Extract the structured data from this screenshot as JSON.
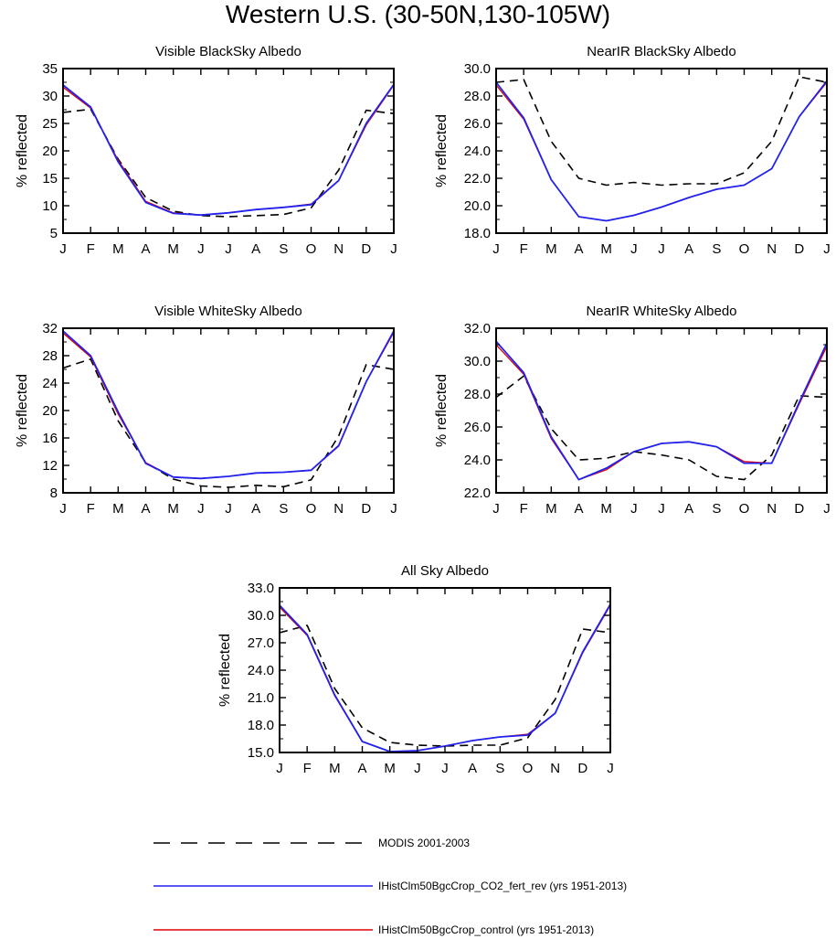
{
  "title": "Western U.S. (30-50N,130-105W)",
  "months": [
    "J",
    "F",
    "M",
    "A",
    "M",
    "J",
    "J",
    "A",
    "S",
    "O",
    "N",
    "D",
    "J"
  ],
  "colors": {
    "modis": "#000000",
    "co2_fert_rev": "#2222ee",
    "control": "#dd0000"
  },
  "legend": [
    {
      "key": "modis",
      "label": "MODIS 2001-2003",
      "style": "dashed"
    },
    {
      "key": "co2_fert_rev",
      "label": "IHistClm50BgcCrop_CO2_fert_rev (yrs 1951-2013)",
      "style": "solid"
    },
    {
      "key": "control",
      "label": "IHistClm50BgcCrop_control (yrs 1951-2013)",
      "style": "solid"
    }
  ],
  "chart_data": [
    {
      "type": "line",
      "title": "Visible BlackSky Albedo",
      "ylabel": "% reflected",
      "ylim": [
        5,
        35
      ],
      "yticks": [
        5,
        10,
        15,
        20,
        25,
        30,
        35
      ],
      "ytick_labels": [
        "5",
        "10",
        "15",
        "20",
        "25",
        "30",
        "35"
      ],
      "series": [
        {
          "key": "modis",
          "values": [
            27.0,
            27.6,
            18.5,
            11.5,
            9.0,
            8.2,
            8.0,
            8.2,
            8.4,
            9.6,
            16.5,
            27.4,
            26.8
          ]
        },
        {
          "key": "control",
          "values": [
            31.6,
            27.8,
            18.3,
            10.8,
            8.7,
            8.3,
            8.7,
            9.3,
            9.7,
            10.3,
            14.6,
            24.7,
            32.0
          ]
        },
        {
          "key": "co2_fert_rev",
          "values": [
            32.0,
            28.0,
            18.0,
            10.6,
            8.6,
            8.3,
            8.7,
            9.3,
            9.7,
            10.2,
            14.6,
            25.0,
            32.1
          ]
        }
      ]
    },
    {
      "type": "line",
      "title": "NearIR BlackSky Albedo",
      "ylabel": "% reflected",
      "ylim": [
        18,
        30
      ],
      "yticks": [
        18,
        20,
        22,
        24,
        26,
        28,
        30
      ],
      "ytick_labels": [
        "18.0",
        "20.0",
        "22.0",
        "24.0",
        "26.0",
        "28.0",
        "30.0"
      ],
      "series": [
        {
          "key": "modis",
          "values": [
            29.0,
            29.2,
            24.7,
            22.0,
            21.5,
            21.7,
            21.5,
            21.6,
            21.6,
            22.4,
            24.7,
            29.4,
            29.0
          ]
        },
        {
          "key": "control",
          "values": [
            28.8,
            26.3,
            21.9,
            19.2,
            18.9,
            19.3,
            19.9,
            20.6,
            21.2,
            21.5,
            22.7,
            26.5,
            29.0
          ]
        },
        {
          "key": "co2_fert_rev",
          "values": [
            29.0,
            26.4,
            21.9,
            19.2,
            18.9,
            19.3,
            19.9,
            20.6,
            21.2,
            21.5,
            22.7,
            26.5,
            29.1
          ]
        }
      ]
    },
    {
      "type": "line",
      "title": "Visible WhiteSky Albedo",
      "ylabel": "% reflected",
      "ylim": [
        8,
        32
      ],
      "yticks": [
        8,
        12,
        16,
        20,
        24,
        28,
        32
      ],
      "ytick_labels": [
        "8",
        "12",
        "16",
        "20",
        "24",
        "28",
        "32"
      ],
      "series": [
        {
          "key": "modis",
          "values": [
            26.2,
            27.5,
            18.5,
            12.4,
            10.0,
            9.0,
            8.8,
            9.1,
            8.9,
            9.9,
            16.3,
            26.7,
            26.0
          ]
        },
        {
          "key": "control",
          "values": [
            31.3,
            27.8,
            19.5,
            12.4,
            10.3,
            10.1,
            10.4,
            10.9,
            11.0,
            11.3,
            14.8,
            24.2,
            31.4
          ]
        },
        {
          "key": "co2_fert_rev",
          "values": [
            31.6,
            28.0,
            19.8,
            12.3,
            10.3,
            10.1,
            10.4,
            10.9,
            11.0,
            11.3,
            14.9,
            24.2,
            31.6
          ]
        }
      ]
    },
    {
      "type": "line",
      "title": "NearIR WhiteSky Albedo",
      "ylabel": "% reflected",
      "ylim": [
        22,
        32
      ],
      "yticks": [
        22,
        24,
        26,
        28,
        30,
        32
      ],
      "ytick_labels": [
        "22.0",
        "24.0",
        "26.0",
        "28.0",
        "30.0",
        "32.0"
      ],
      "series": [
        {
          "key": "modis",
          "values": [
            27.8,
            29.1,
            25.9,
            24.0,
            24.1,
            24.5,
            24.3,
            24.0,
            23.0,
            22.8,
            24.3,
            27.9,
            27.8
          ]
        },
        {
          "key": "control",
          "values": [
            31.0,
            29.2,
            25.3,
            22.8,
            23.4,
            24.5,
            25.0,
            25.1,
            24.8,
            23.9,
            23.8,
            27.4,
            30.9
          ]
        },
        {
          "key": "co2_fert_rev",
          "values": [
            31.2,
            29.3,
            25.4,
            22.8,
            23.5,
            24.5,
            25.0,
            25.1,
            24.8,
            23.8,
            23.8,
            27.5,
            31.1
          ]
        }
      ]
    },
    {
      "type": "line",
      "title": "All Sky Albedo",
      "ylabel": "% reflected",
      "ylim": [
        15,
        33
      ],
      "yticks": [
        15,
        18,
        21,
        24,
        27,
        30,
        33
      ],
      "ytick_labels": [
        "15.0",
        "18.0",
        "21.0",
        "24.0",
        "27.0",
        "30.0",
        "33.0"
      ],
      "series": [
        {
          "key": "modis",
          "values": [
            28.1,
            28.9,
            22.0,
            17.7,
            16.1,
            15.8,
            15.7,
            15.8,
            15.8,
            16.6,
            20.8,
            28.5,
            28.1
          ]
        },
        {
          "key": "control",
          "values": [
            30.9,
            27.8,
            21.2,
            16.2,
            15.1,
            15.2,
            15.7,
            16.3,
            16.7,
            17.0,
            19.3,
            25.9,
            31.1
          ]
        },
        {
          "key": "co2_fert_rev",
          "values": [
            31.1,
            27.9,
            21.3,
            16.2,
            15.1,
            15.2,
            15.7,
            16.3,
            16.7,
            16.9,
            19.3,
            26.0,
            31.2
          ]
        }
      ]
    }
  ]
}
